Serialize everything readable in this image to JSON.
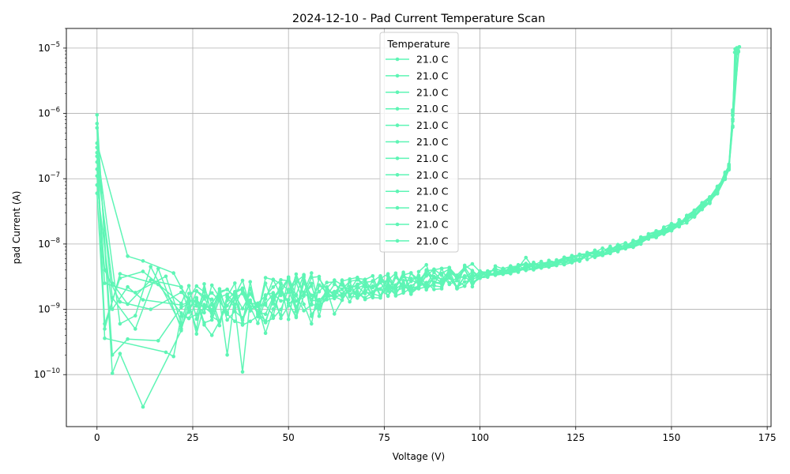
{
  "chart_data": {
    "type": "line",
    "title": "2024-12-10 - Pad Current Temperature Scan",
    "xlabel": "Voltage (V)",
    "ylabel": "pad Current (A)",
    "xlim": [
      -8,
      176
    ],
    "ylim": [
      1.6e-11,
      2e-05
    ],
    "y_scale": "log",
    "x_ticks": [
      0,
      25,
      50,
      75,
      100,
      125,
      150,
      175
    ],
    "y_ticks": [
      {
        "value": 1e-10,
        "mantissa": "10",
        "exp": "−10"
      },
      {
        "value": 1e-09,
        "mantissa": "10",
        "exp": "−9"
      },
      {
        "value": 1e-08,
        "mantissa": "10",
        "exp": "−8"
      },
      {
        "value": 1e-07,
        "mantissa": "10",
        "exp": "−7"
      },
      {
        "value": 1e-06,
        "mantissa": "10",
        "exp": "−6"
      },
      {
        "value": 1e-05,
        "mantissa": "10",
        "exp": "−5"
      }
    ],
    "grid": true,
    "legend": {
      "title": "Temperature",
      "placement": "top-center"
    },
    "series_color": "#5ef5b5",
    "baseline": {
      "x": [
        20,
        24,
        30,
        40,
        50,
        60,
        70,
        80,
        90,
        100,
        110,
        120,
        130,
        140,
        145,
        150,
        155,
        160,
        163,
        165,
        166,
        167,
        168
      ],
      "y": [
        9e-10,
        1.1e-09,
        1.1e-09,
        1.3e-09,
        1.5e-09,
        1.8e-09,
        2.1e-09,
        2.5e-09,
        2.9e-09,
        3.4e-09,
        4.2e-09,
        5.2e-09,
        7e-09,
        1e-08,
        1.35e-08,
        1.8e-08,
        2.6e-08,
        4.8e-08,
        8e-08,
        1.5e-07,
        8e-07,
        9e-06,
        1e-05
      ]
    },
    "series": [
      {
        "name": "21.0 C",
        "y0": 9.5e-07,
        "low": [
          {
            "x": 12,
            "y": 3.2e-11
          },
          {
            "x": 4,
            "y": 1.05e-10
          },
          {
            "x": 6,
            "y": 2.1e-10
          }
        ],
        "spikes": [
          {
            "x": 112,
            "y": 6.2e-09
          }
        ]
      },
      {
        "name": "21.0 C",
        "y0": 7e-07,
        "low": [
          {
            "x": 4,
            "y": 2e-10
          },
          {
            "x": 8,
            "y": 3.5e-10
          },
          {
            "x": 16,
            "y": 3.3e-10
          }
        ],
        "spikes": [
          {
            "x": 86,
            "y": 4.8e-09
          }
        ]
      },
      {
        "name": "21.0 C",
        "y0": 6e-07,
        "low": [
          {
            "x": 2,
            "y": 3.6e-10
          },
          {
            "x": 18,
            "y": 2.2e-10
          },
          {
            "x": 20,
            "y": 1.9e-10
          }
        ],
        "spikes": [
          {
            "x": 54,
            "y": 2.5e-09
          }
        ]
      },
      {
        "name": "21.0 C",
        "y0": 3.5e-07,
        "low": [
          {
            "x": 8,
            "y": 6.5e-09
          },
          {
            "x": 12,
            "y": 5.5e-09
          },
          {
            "x": 20,
            "y": 3.6e-09
          }
        ],
        "spikes": [
          {
            "x": 104,
            "y": 4.6e-09
          }
        ]
      },
      {
        "name": "21.0 C",
        "y0": 3e-07,
        "low": [
          {
            "x": 6,
            "y": 6e-10
          },
          {
            "x": 10,
            "y": 8e-10
          },
          {
            "x": 14,
            "y": 4.5e-09
          }
        ],
        "spikes": [
          {
            "x": 34,
            "y": 2e-10
          }
        ]
      },
      {
        "name": "21.0 C",
        "y0": 2.5e-07,
        "low": [
          {
            "x": 4,
            "y": 1.5e-09
          },
          {
            "x": 10,
            "y": 5e-10
          },
          {
            "x": 16,
            "y": 4.2e-09
          }
        ],
        "spikes": [
          {
            "x": 38,
            "y": 1.1e-10
          }
        ]
      },
      {
        "name": "21.0 C",
        "y0": 2.2e-07,
        "low": [
          {
            "x": 2,
            "y": 6e-10
          },
          {
            "x": 6,
            "y": 3e-09
          },
          {
            "x": 12,
            "y": 3.8e-09
          }
        ],
        "spikes": [
          {
            "x": 44,
            "y": 4.3e-10
          }
        ]
      },
      {
        "name": "21.0 C",
        "y0": 1.8e-07,
        "low": [
          {
            "x": 4,
            "y": 2.5e-09
          },
          {
            "x": 8,
            "y": 1.2e-09
          },
          {
            "x": 14,
            "y": 2.8e-09
          }
        ],
        "spikes": [
          {
            "x": 56,
            "y": 6e-10
          }
        ]
      },
      {
        "name": "21.0 C",
        "y0": 1.4e-07,
        "low": [
          {
            "x": 2,
            "y": 2.5e-09
          },
          {
            "x": 10,
            "y": 1.8e-09
          },
          {
            "x": 18,
            "y": 3.2e-09
          }
        ],
        "spikes": [
          {
            "x": 62,
            "y": 8.5e-10
          }
        ]
      },
      {
        "name": "21.0 C",
        "y0": 1.1e-07,
        "low": [
          {
            "x": 2,
            "y": 4e-09
          },
          {
            "x": 6,
            "y": 1.3e-09
          },
          {
            "x": 14,
            "y": 1e-09
          }
        ],
        "spikes": [
          {
            "x": 72,
            "y": 1.6e-09
          }
        ]
      },
      {
        "name": "21.0 C",
        "y0": 8e-08,
        "low": [
          {
            "x": 4,
            "y": 1e-09
          },
          {
            "x": 8,
            "y": 2.2e-09
          },
          {
            "x": 12,
            "y": 1.4e-09
          }
        ],
        "spikes": [
          {
            "x": 26,
            "y": 4.2e-10
          }
        ]
      },
      {
        "name": "21.0 C",
        "y0": 6e-08,
        "low": [
          {
            "x": 2,
            "y": 5e-10
          },
          {
            "x": 6,
            "y": 3.5e-09
          },
          {
            "x": 16,
            "y": 2.4e-09
          }
        ],
        "spikes": [
          {
            "x": 30,
            "y": 4e-10
          }
        ]
      }
    ]
  }
}
